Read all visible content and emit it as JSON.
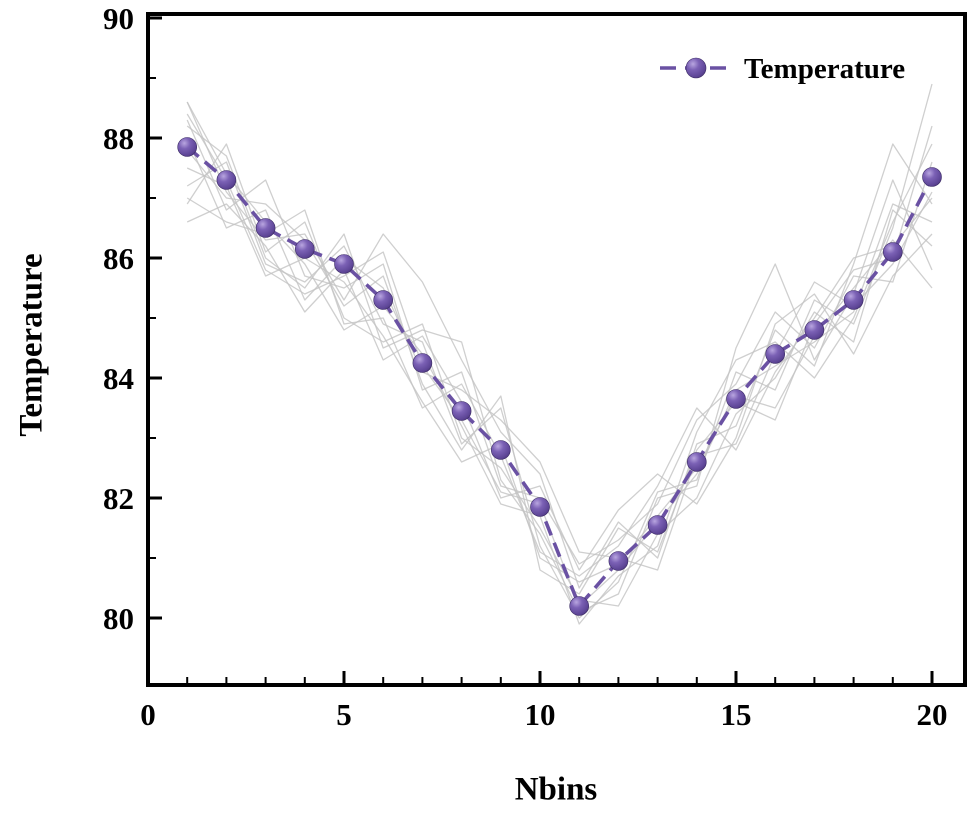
{
  "chart_data": {
    "type": "line",
    "title": "",
    "xlabel": "Nbins",
    "ylabel": "Temperature",
    "xlim": [
      0,
      20.85
    ],
    "ylim": [
      78.9,
      90.07
    ],
    "x_ticks": [
      0,
      5,
      10,
      15,
      20
    ],
    "y_ticks": [
      80,
      82,
      84,
      86,
      88,
      90
    ],
    "grid": false,
    "x": [
      1,
      2,
      3,
      4,
      5,
      6,
      7,
      8,
      9,
      10,
      11,
      12,
      13,
      14,
      15,
      16,
      17,
      18,
      19,
      20
    ],
    "series": [
      {
        "name": "Temperature",
        "color": "#6a51a3",
        "line_style": "dashed",
        "marker": "sphere",
        "values": [
          87.85,
          87.3,
          86.5,
          86.15,
          85.9,
          85.3,
          84.25,
          83.45,
          82.8,
          81.85,
          80.2,
          80.95,
          81.55,
          82.6,
          83.65,
          84.4,
          84.8,
          85.3,
          86.1,
          87.35
        ]
      }
    ],
    "background_series": [
      [
        88.6,
        87.1,
        86.3,
        86.4,
        85.3,
        86.4,
        85.6,
        84.3,
        83.1,
        82.4,
        80.5,
        81.6,
        81.0,
        82.9,
        83.2,
        84.8,
        84.2,
        85.9,
        87.9,
        86.9
      ],
      [
        87.2,
        87.6,
        85.9,
        85.6,
        86.2,
        84.9,
        84.6,
        82.9,
        83.5,
        81.2,
        80.0,
        80.6,
        82.1,
        82.3,
        84.1,
        83.8,
        85.3,
        84.9,
        86.5,
        88.9
      ],
      [
        88.3,
        86.8,
        87.3,
        85.7,
        85.5,
        85.9,
        83.8,
        84.1,
        82.2,
        82.0,
        80.9,
        81.3,
        81.9,
        83.3,
        83.9,
        85.1,
        84.5,
        85.7,
        85.6,
        87.6
      ],
      [
        86.9,
        87.9,
        86.1,
        86.6,
        85.0,
        84.6,
        84.9,
        83.0,
        82.5,
        81.5,
        80.3,
        80.2,
        81.4,
        82.0,
        83.4,
        84.0,
        85.1,
        84.6,
        86.8,
        86.2
      ],
      [
        88.0,
        86.5,
        86.8,
        85.3,
        86.0,
        85.5,
        84.1,
        83.8,
        83.3,
        82.6,
        81.1,
        81.0,
        80.8,
        82.7,
        82.9,
        84.4,
        85.6,
        85.2,
        85.9,
        87.1
      ],
      [
        87.5,
        87.2,
        85.7,
        86.0,
        85.6,
        84.7,
        83.6,
        82.6,
        82.9,
        81.0,
        80.6,
        80.9,
        81.7,
        82.5,
        83.7,
        83.5,
        84.7,
        85.5,
        86.3,
        85.5
      ],
      [
        88.6,
        87.4,
        86.6,
        85.9,
        84.8,
        85.2,
        84.4,
        83.2,
        81.9,
        81.7,
        79.9,
        80.7,
        81.2,
        83.1,
        84.3,
        84.6,
        84.0,
        85.0,
        86.6,
        87.9
      ],
      [
        86.6,
        86.9,
        86.2,
        85.1,
        85.8,
        84.3,
        84.7,
        83.6,
        82.0,
        82.2,
        80.8,
        81.8,
        82.4,
        81.9,
        83.0,
        84.9,
        85.4,
        84.4,
        85.7,
        86.4
      ],
      [
        87.8,
        87.0,
        86.9,
        86.3,
        85.2,
        85.7,
        83.9,
        82.8,
        83.7,
        80.8,
        80.4,
        81.5,
        81.1,
        82.8,
        83.6,
        83.3,
        84.9,
        85.8,
        86.0,
        88.2
      ],
      [
        88.2,
        87.7,
        86.0,
        85.5,
        86.4,
        84.5,
        84.8,
        84.6,
        82.3,
        81.4,
        80.1,
        80.4,
        82.0,
        82.2,
        84.5,
        85.9,
        84.3,
        85.4,
        87.3,
        85.8
      ],
      [
        87.0,
        86.6,
        86.4,
        86.8,
        84.9,
        85.0,
        83.5,
        83.9,
        82.7,
        81.1,
        80.7,
        81.2,
        82.2,
        83.5,
        82.8,
        84.1,
        85.0,
        86.0,
        86.2,
        87.0
      ],
      [
        88.4,
        87.3,
        85.8,
        85.4,
        85.7,
        86.1,
        84.2,
        83.3,
        82.1,
        81.9,
        80.2,
        80.8,
        81.6,
        82.4,
        83.8,
        84.2,
        84.6,
        85.1,
        86.9,
        86.6
      ]
    ],
    "background_color": "#c3c3c3",
    "legend": {
      "label": "Temperature",
      "position": "top-right"
    },
    "colors": {
      "accent": "#6a51a3",
      "marker_edge": "#3a2a63",
      "axis": "#000000",
      "background_runs": "#c3c3c3"
    }
  }
}
